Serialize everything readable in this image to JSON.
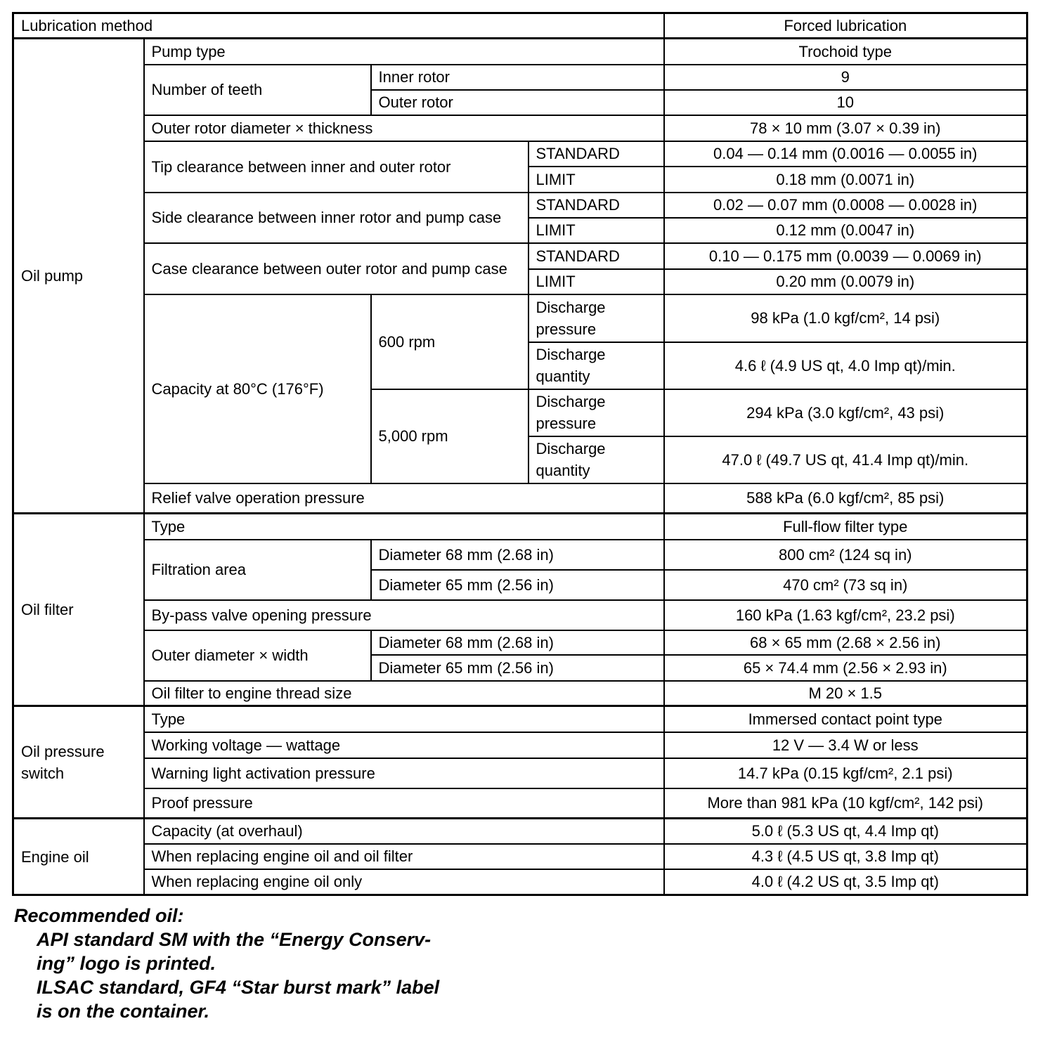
{
  "lubrication_method": {
    "label": "Lubrication method",
    "value": "Forced lubrication"
  },
  "oil_pump": {
    "label": "Oil pump",
    "pump_type": {
      "label": "Pump type",
      "value": "Trochoid type"
    },
    "teeth": {
      "label": "Number of teeth",
      "inner": {
        "label": "Inner rotor",
        "value": "9"
      },
      "outer": {
        "label": "Outer rotor",
        "value": "10"
      }
    },
    "outer_rotor_dim": {
      "label": "Outer rotor diameter × thickness",
      "value": "78 × 10 mm (3.07 × 0.39 in)"
    },
    "tip_clearance": {
      "label": "Tip clearance between inner and outer rotor",
      "standard": {
        "label": "STANDARD",
        "value": "0.04 — 0.14 mm (0.0016 — 0.0055 in)"
      },
      "limit": {
        "label": "LIMIT",
        "value": "0.18 mm (0.0071 in)"
      }
    },
    "side_clearance": {
      "label": "Side clearance between inner rotor and pump case",
      "standard": {
        "label": "STANDARD",
        "value": "0.02 — 0.07 mm (0.0008 — 0.0028 in)"
      },
      "limit": {
        "label": "LIMIT",
        "value": "0.12 mm (0.0047 in)"
      }
    },
    "case_clearance": {
      "label": "Case clearance between outer rotor and pump case",
      "standard": {
        "label": "STANDARD",
        "value": "0.10 — 0.175 mm (0.0039 — 0.0069 in)"
      },
      "limit": {
        "label": "LIMIT",
        "value": "0.20 mm (0.0079 in)"
      }
    },
    "capacity": {
      "label": "Capacity at 80°C (176°F)",
      "rpm600": {
        "label": "600 rpm",
        "pressure": {
          "label": "Discharge pressure",
          "value": "98 kPa (1.0 kgf/cm², 14 psi)"
        },
        "quantity": {
          "label": "Discharge quantity",
          "value": "4.6 ℓ (4.9 US qt, 4.0 Imp qt)/min."
        }
      },
      "rpm5000": {
        "label": "5,000 rpm",
        "pressure": {
          "label": "Discharge pressure",
          "value": "294 kPa (3.0 kgf/cm², 43 psi)"
        },
        "quantity": {
          "label": "Discharge quantity",
          "value": "47.0 ℓ (49.7 US qt, 41.4 Imp qt)/min."
        }
      }
    },
    "relief_valve": {
      "label": "Relief valve operation pressure",
      "value": "588 kPa (6.0 kgf/cm², 85 psi)"
    }
  },
  "oil_filter": {
    "label": "Oil filter",
    "type": {
      "label": "Type",
      "value": "Full-flow filter type"
    },
    "filtration_area": {
      "label": "Filtration area",
      "d68": {
        "label": "Diameter 68 mm (2.68 in)",
        "value": "800 cm² (124 sq in)"
      },
      "d65": {
        "label": "Diameter 65 mm (2.56 in)",
        "value": "470 cm² (73 sq in)"
      }
    },
    "bypass": {
      "label": "By-pass valve opening pressure",
      "value": "160 kPa (1.63 kgf/cm², 23.2 psi)"
    },
    "outer_dim": {
      "label": "Outer diameter × width",
      "d68": {
        "label": "Diameter 68 mm (2.68 in)",
        "value": "68 × 65 mm (2.68 × 2.56 in)"
      },
      "d65": {
        "label": "Diameter 65 mm (2.56 in)",
        "value": "65 × 74.4 mm (2.56 × 2.93 in)"
      }
    },
    "thread": {
      "label": "Oil filter to engine thread size",
      "value": "M 20 × 1.5"
    }
  },
  "oil_pressure_switch": {
    "label": "Oil pressure switch",
    "type": {
      "label": "Type",
      "value": "Immersed contact point type"
    },
    "voltage": {
      "label": "Working voltage — wattage",
      "value": "12 V — 3.4 W or less"
    },
    "warning": {
      "label": "Warning light activation pressure",
      "value": "14.7 kPa (0.15 kgf/cm², 2.1 psi)"
    },
    "proof": {
      "label": "Proof pressure",
      "value": "More than 981 kPa (10 kgf/cm², 142 psi)"
    }
  },
  "engine_oil": {
    "label": "Engine oil",
    "capacity": {
      "label": "Capacity (at overhaul)",
      "value": "5.0 ℓ (5.3 US qt, 4.4 Imp qt)"
    },
    "oil_and_filter": {
      "label": "When replacing engine oil and oil filter",
      "value": "4.3 ℓ (4.5 US qt, 3.8 Imp qt)"
    },
    "oil_only": {
      "label": "When replacing engine oil only",
      "value": "4.0 ℓ (4.2 US qt, 3.5 Imp qt)"
    }
  },
  "note": {
    "title": "Recommended oil:",
    "lines": [
      "API standard SM with the “Energy Conserv-",
      "ing” logo is printed.",
      "ILSAC standard, GF4 “Star burst mark” label",
      "is on the container."
    ]
  }
}
